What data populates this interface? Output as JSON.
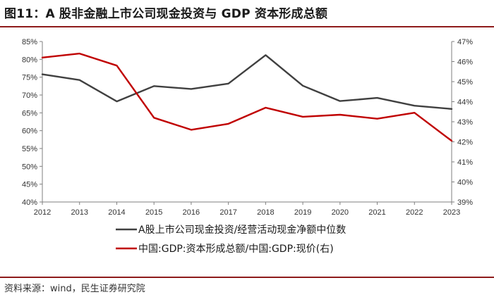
{
  "title": "图11：A 股非金融上市公司现金投资与 GDP 资本形成总额",
  "source": "资料来源：wind，民生证券研究院",
  "colors": {
    "left_series": "#404040",
    "right_series": "#c00000",
    "rule": "#8e1b1b"
  },
  "chart_data": {
    "type": "line",
    "title": "A 股非金融上市公司现金投资与 GDP 资本形成总额",
    "x": [
      "2012",
      "2013",
      "2014",
      "2015",
      "2016",
      "2017",
      "2018",
      "2019",
      "2020",
      "2021",
      "2022",
      "2023"
    ],
    "left_axis": {
      "ylim": [
        40,
        85
      ],
      "ticks": [
        "40%",
        "45%",
        "50%",
        "55%",
        "60%",
        "65%",
        "70%",
        "75%",
        "80%",
        "85%"
      ]
    },
    "right_axis": {
      "ylim": [
        39,
        47
      ],
      "ticks": [
        "39%",
        "40%",
        "41%",
        "42%",
        "43%",
        "44%",
        "45%",
        "46%",
        "47%"
      ]
    },
    "series": [
      {
        "name": "A股上市公司现金投资/经营活动现金净额中位数",
        "axis": "left",
        "values": [
          75.8,
          74.2,
          68.2,
          72.5,
          71.7,
          73.2,
          81.2,
          72.6,
          68.3,
          69.2,
          67.0,
          66.1
        ]
      },
      {
        "name": "中国:GDP:资本形成总额/中国:GDP:现价(右)",
        "axis": "right",
        "values": [
          46.2,
          46.4,
          45.8,
          43.2,
          42.6,
          42.9,
          43.7,
          43.25,
          43.35,
          43.15,
          43.45,
          42.05
        ]
      }
    ],
    "grid": false,
    "legend_position": "bottom"
  }
}
